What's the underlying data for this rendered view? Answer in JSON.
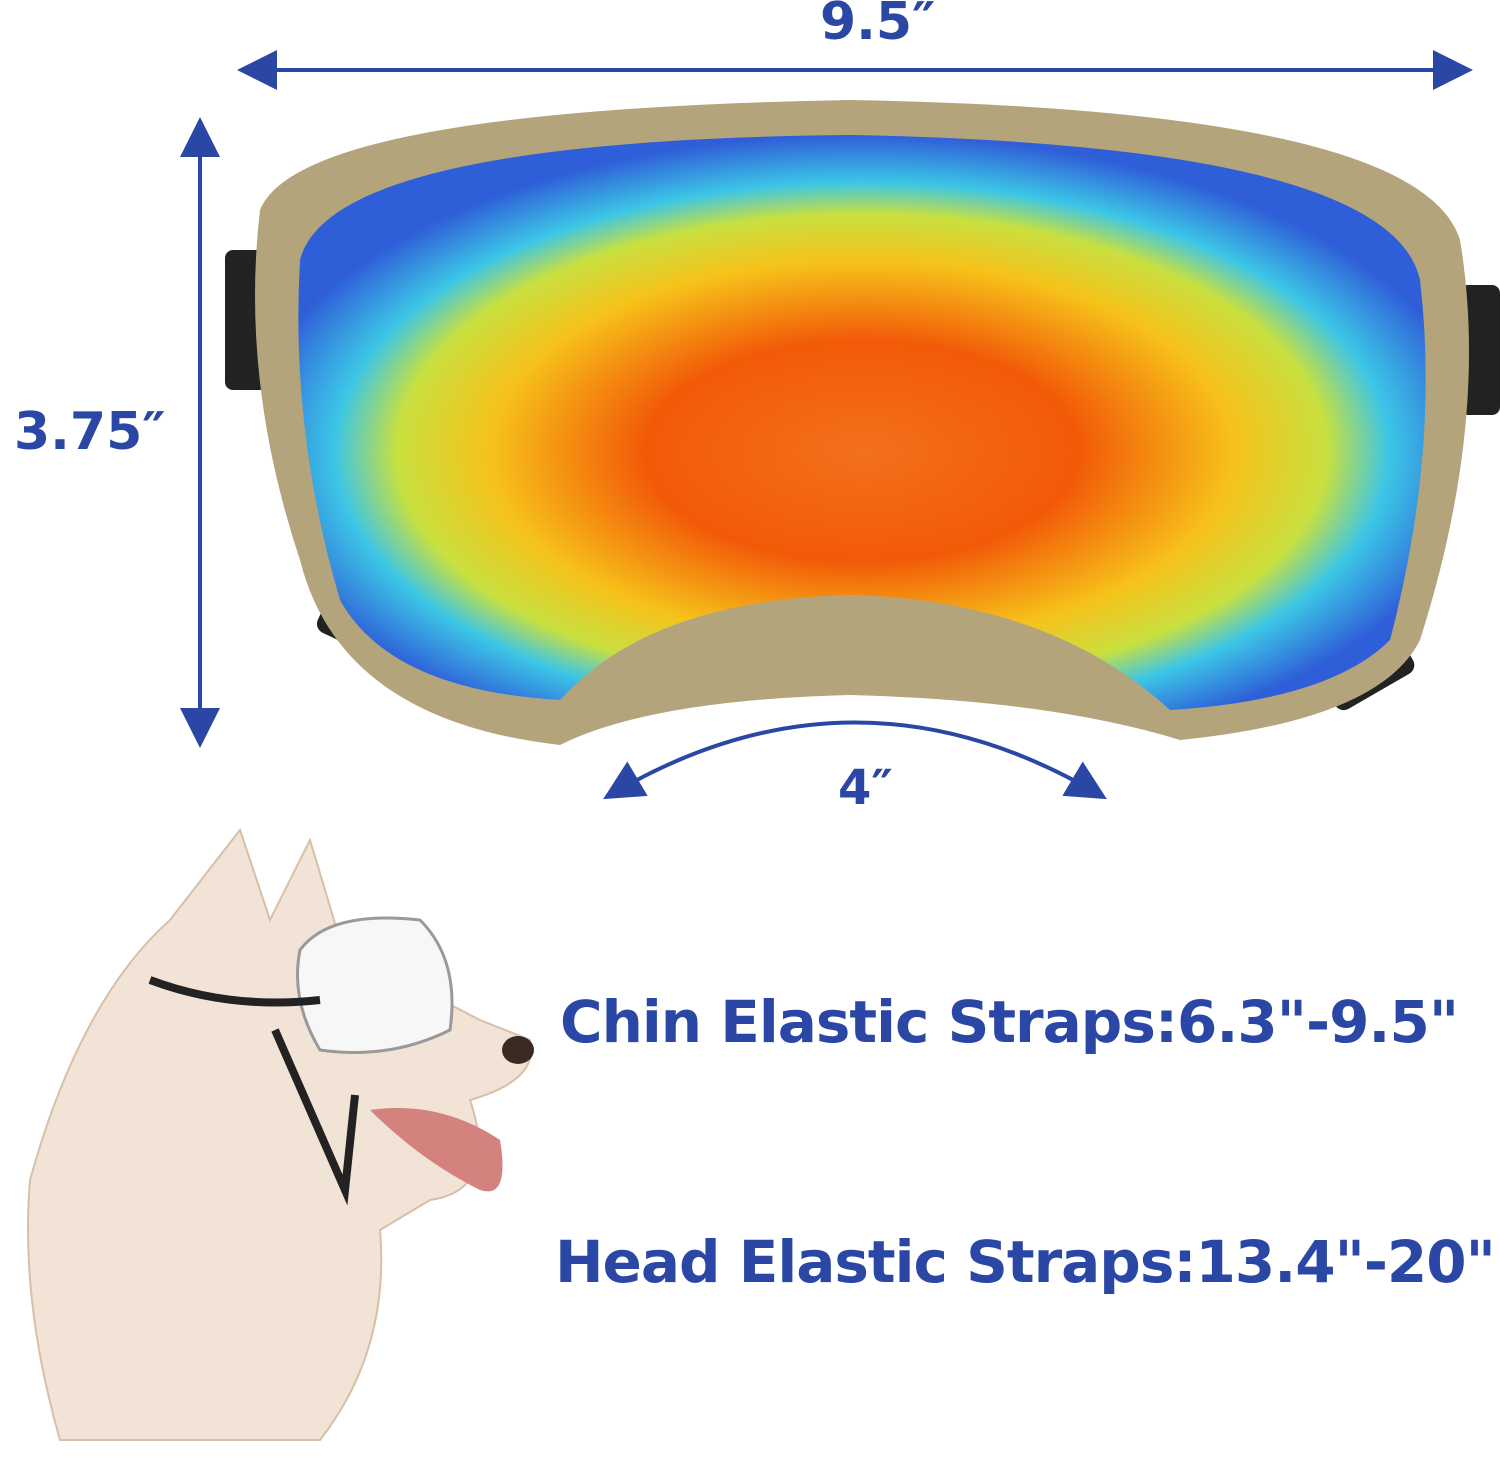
{
  "dimensions": {
    "width": "9.5″",
    "height": "3.75″",
    "nose_curve": "4″"
  },
  "straps": {
    "chin": "Chin Elastic Straps:6.3\"-9.5\"",
    "head": "Head Elastic Straps:13.4\"-20\""
  },
  "colors": {
    "text": "#2b47a6",
    "frame": "#b3a47c",
    "lens_center": "#f05a10"
  }
}
